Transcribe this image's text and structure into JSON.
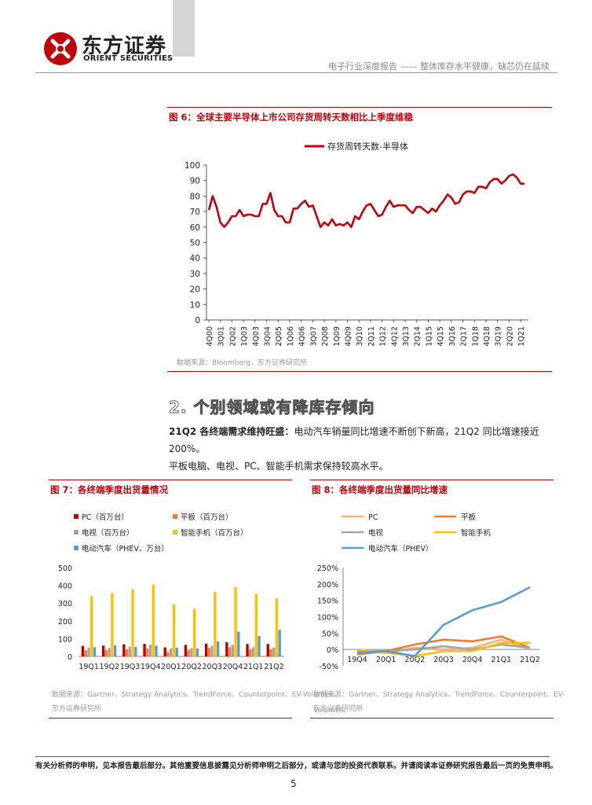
{
  "header": {
    "brand_cn": "东方证券",
    "brand_en": "ORIENT SECURITIES",
    "report_title": "电子行业深度报告 —— 整体库存水平健康，缺芯仍在延续"
  },
  "figure6": {
    "title": "图 6：全球主要半导体上市公司存货周转天数相比上季度维稳",
    "source": "数据来源：Bloomberg，东方证券研究所",
    "chart_data": {
      "type": "line",
      "title": "",
      "legend": [
        "存货周转天数-半导体"
      ],
      "color": "#c0000b",
      "ylim": [
        0,
        100
      ],
      "yticks": [
        0,
        10,
        20,
        30,
        40,
        50,
        60,
        70,
        80,
        90,
        100
      ],
      "xtick_labels": [
        "4Q00",
        "3Q01",
        "2Q02",
        "1Q03",
        "4Q03",
        "3Q04",
        "2Q05",
        "1Q06",
        "4Q06",
        "3Q07",
        "2Q08",
        "1Q09",
        "4Q09",
        "3Q10",
        "2Q11",
        "1Q12",
        "4Q12",
        "3Q13",
        "2Q14",
        "1Q15",
        "4Q15",
        "3Q16",
        "2Q17",
        "1Q18",
        "4Q18",
        "3Q19",
        "2Q20",
        "1Q21"
      ],
      "series": [
        {
          "name": "存货周转天数-半导体",
          "values": [
            71,
            80,
            73,
            63,
            60,
            63,
            67,
            67,
            71,
            67,
            68,
            68,
            67,
            67,
            75,
            75,
            82,
            71,
            67,
            67,
            63,
            63,
            72,
            72,
            75,
            77,
            73,
            74,
            67,
            60,
            63,
            61,
            65,
            61,
            62,
            61,
            63,
            60,
            67,
            65,
            70,
            74,
            75,
            71,
            67,
            68,
            73,
            77,
            73,
            74,
            74,
            74,
            71,
            69,
            73,
            73,
            71,
            69,
            72,
            70,
            74,
            77,
            81,
            79,
            75,
            76,
            81,
            83,
            83,
            82,
            86,
            86,
            85,
            89,
            91,
            91,
            88,
            90,
            93,
            94,
            92,
            88,
            88
          ]
        }
      ]
    }
  },
  "section": {
    "title": "2.  个别领域或有降库存倾向",
    "para_bold": "21Q2 各终端需求维持旺盛：",
    "para_text1": "电动汽车销量同比增速不断创下新高，21Q2 同比增速接近 200%。",
    "para_text2": "平板电脑、电视、PC、智能手机需求保持较高水平。"
  },
  "figure7": {
    "title": "图 7：各终端季度出货量情况",
    "source_line1": "数据来源：Gartner、Strategy Analytics、TrendForce、Counterpoint、EV-Volumes、",
    "source_line2": "东方证券研究所",
    "chart_data": {
      "type": "bar",
      "categories": [
        "19Q1",
        "19Q2",
        "19Q3",
        "19Q4",
        "20Q1",
        "20Q2",
        "20Q3",
        "20Q4",
        "21Q1",
        "21Q2"
      ],
      "ylim": [
        0,
        500
      ],
      "yticks": [
        0,
        100,
        200,
        300,
        400,
        500
      ],
      "series": [
        {
          "name": "PC（百万台）",
          "color": "#c00000",
          "values": [
            59,
            61,
            68,
            71,
            51,
            65,
            72,
            80,
            70,
            70
          ]
        },
        {
          "name": "平板（百万台）",
          "color": "#ed7d31",
          "values": [
            35,
            37,
            40,
            44,
            25,
            38,
            48,
            52,
            40,
            40
          ]
        },
        {
          "name": "电视（百万台）",
          "color": "#a5a5a5",
          "values": [
            50,
            48,
            55,
            65,
            45,
            47,
            60,
            65,
            52,
            50
          ]
        },
        {
          "name": "智能手机（百万台）",
          "color": "#ffc000",
          "values": [
            340,
            357,
            378,
            405,
            294,
            268,
            364,
            390,
            352,
            328
          ]
        },
        {
          "name": "电动汽车（PHEV、万台）",
          "color": "#5b9bd5",
          "values": [
            52,
            63,
            53,
            60,
            50,
            44,
            85,
            140,
            115,
            150
          ]
        }
      ]
    }
  },
  "figure8": {
    "title": "图 8：各终端季度出货量同比增速",
    "source_line1": "数据来源：Gartner、Strategy Analytics、TrendForce、Counterpoint、EV-Volumes、",
    "source_line2": "东方证券研究所",
    "chart_data": {
      "type": "line",
      "categories": [
        "19Q4",
        "20Q1",
        "20Q2",
        "20Q3",
        "20Q4",
        "21Q1",
        "21Q2"
      ],
      "ylim": [
        -0.5,
        2.5
      ],
      "yticks": [
        "-50%",
        "0%",
        "50%",
        "100%",
        "150%",
        "200%",
        "250%"
      ],
      "series": [
        {
          "name": "PC",
          "color": "#f4b183",
          "values": [
            -0.05,
            -0.1,
            0.05,
            0.0,
            0.05,
            0.3,
            0.0
          ]
        },
        {
          "name": "平板",
          "color": "#ed7d31",
          "values": [
            -0.15,
            -0.05,
            0.15,
            0.3,
            0.25,
            0.4,
            0.05
          ]
        },
        {
          "name": "电视",
          "color": "#a5a5a5",
          "values": [
            -0.05,
            -0.05,
            0.0,
            0.1,
            0.0,
            0.15,
            0.05
          ]
        },
        {
          "name": "智能手机",
          "color": "#ffc000",
          "values": [
            0.0,
            -0.1,
            -0.2,
            -0.05,
            -0.05,
            0.2,
            0.2
          ]
        },
        {
          "name": "电动汽车（PHEV）",
          "color": "#5b9bd5",
          "values": [
            -0.1,
            -0.05,
            -0.2,
            0.75,
            1.2,
            1.45,
            1.9
          ]
        }
      ]
    }
  },
  "footer": {
    "disclaimer": "有关分析师的申明，见本报告最后部分。其他重要信息披露见分析师申明之后部分，或请与您的投资代表联系。并请阅读本证券研究报告最后一页的免责申明。",
    "page": "5"
  }
}
